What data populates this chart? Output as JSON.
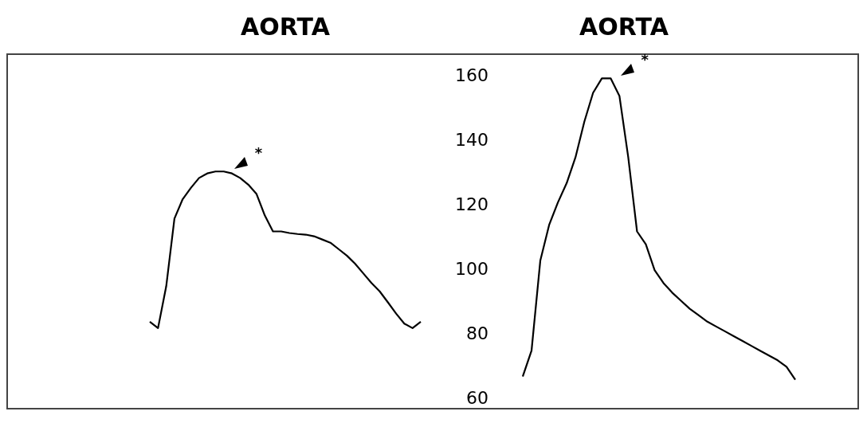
{
  "chart_data": [
    {
      "type": "line",
      "title": "AORTA",
      "categories": [
        null,
        null,
        null,
        null,
        null,
        null,
        null,
        null,
        null,
        null,
        null,
        null,
        null,
        null,
        null,
        null,
        null,
        null,
        null,
        null,
        null,
        null,
        null,
        null,
        null,
        null,
        null,
        null,
        null,
        null,
        null,
        null,
        null,
        null
      ],
      "series": [
        {
          "color": "#000000",
          "values": [
            84,
            82,
            95,
            116,
            122,
            125.5,
            128.6,
            130,
            130.6,
            130.6,
            130,
            128.6,
            126.5,
            123.6,
            117,
            112,
            112,
            111.5,
            111.2,
            111,
            110.5,
            109.5,
            108.5,
            106.5,
            104.5,
            102,
            99,
            96,
            93.4,
            90,
            86.5,
            83.4,
            82,
            84
          ]
        }
      ],
      "ylim": [
        57,
        167
      ],
      "yticks": [
        60,
        80,
        100,
        120,
        140,
        160
      ],
      "tick_labels": false,
      "annotations": [
        "*"
      ]
    },
    {
      "type": "line",
      "title": "AORTA",
      "categories": [
        null,
        null,
        null,
        null,
        null,
        null,
        null,
        null,
        null,
        null,
        null,
        null,
        null,
        null,
        null,
        null,
        null,
        null,
        null,
        null,
        null,
        null,
        null,
        null,
        null,
        null,
        null,
        null,
        null,
        null,
        null,
        null
      ],
      "series": [
        {
          "color": "#000000",
          "values": [
            67,
            75,
            103,
            114,
            121,
            127,
            135,
            146,
            155,
            159.5,
            159.5,
            154,
            135,
            112,
            108,
            100,
            96,
            93,
            90.5,
            88,
            86,
            84,
            82.5,
            81,
            79.5,
            78,
            76.5,
            75,
            73.5,
            72,
            70,
            66
          ]
        }
      ],
      "ylim": [
        57,
        167
      ],
      "yticks": [
        60,
        80,
        100,
        120,
        140,
        160
      ],
      "tick_labels": "y",
      "annotations": [
        "*"
      ]
    }
  ]
}
